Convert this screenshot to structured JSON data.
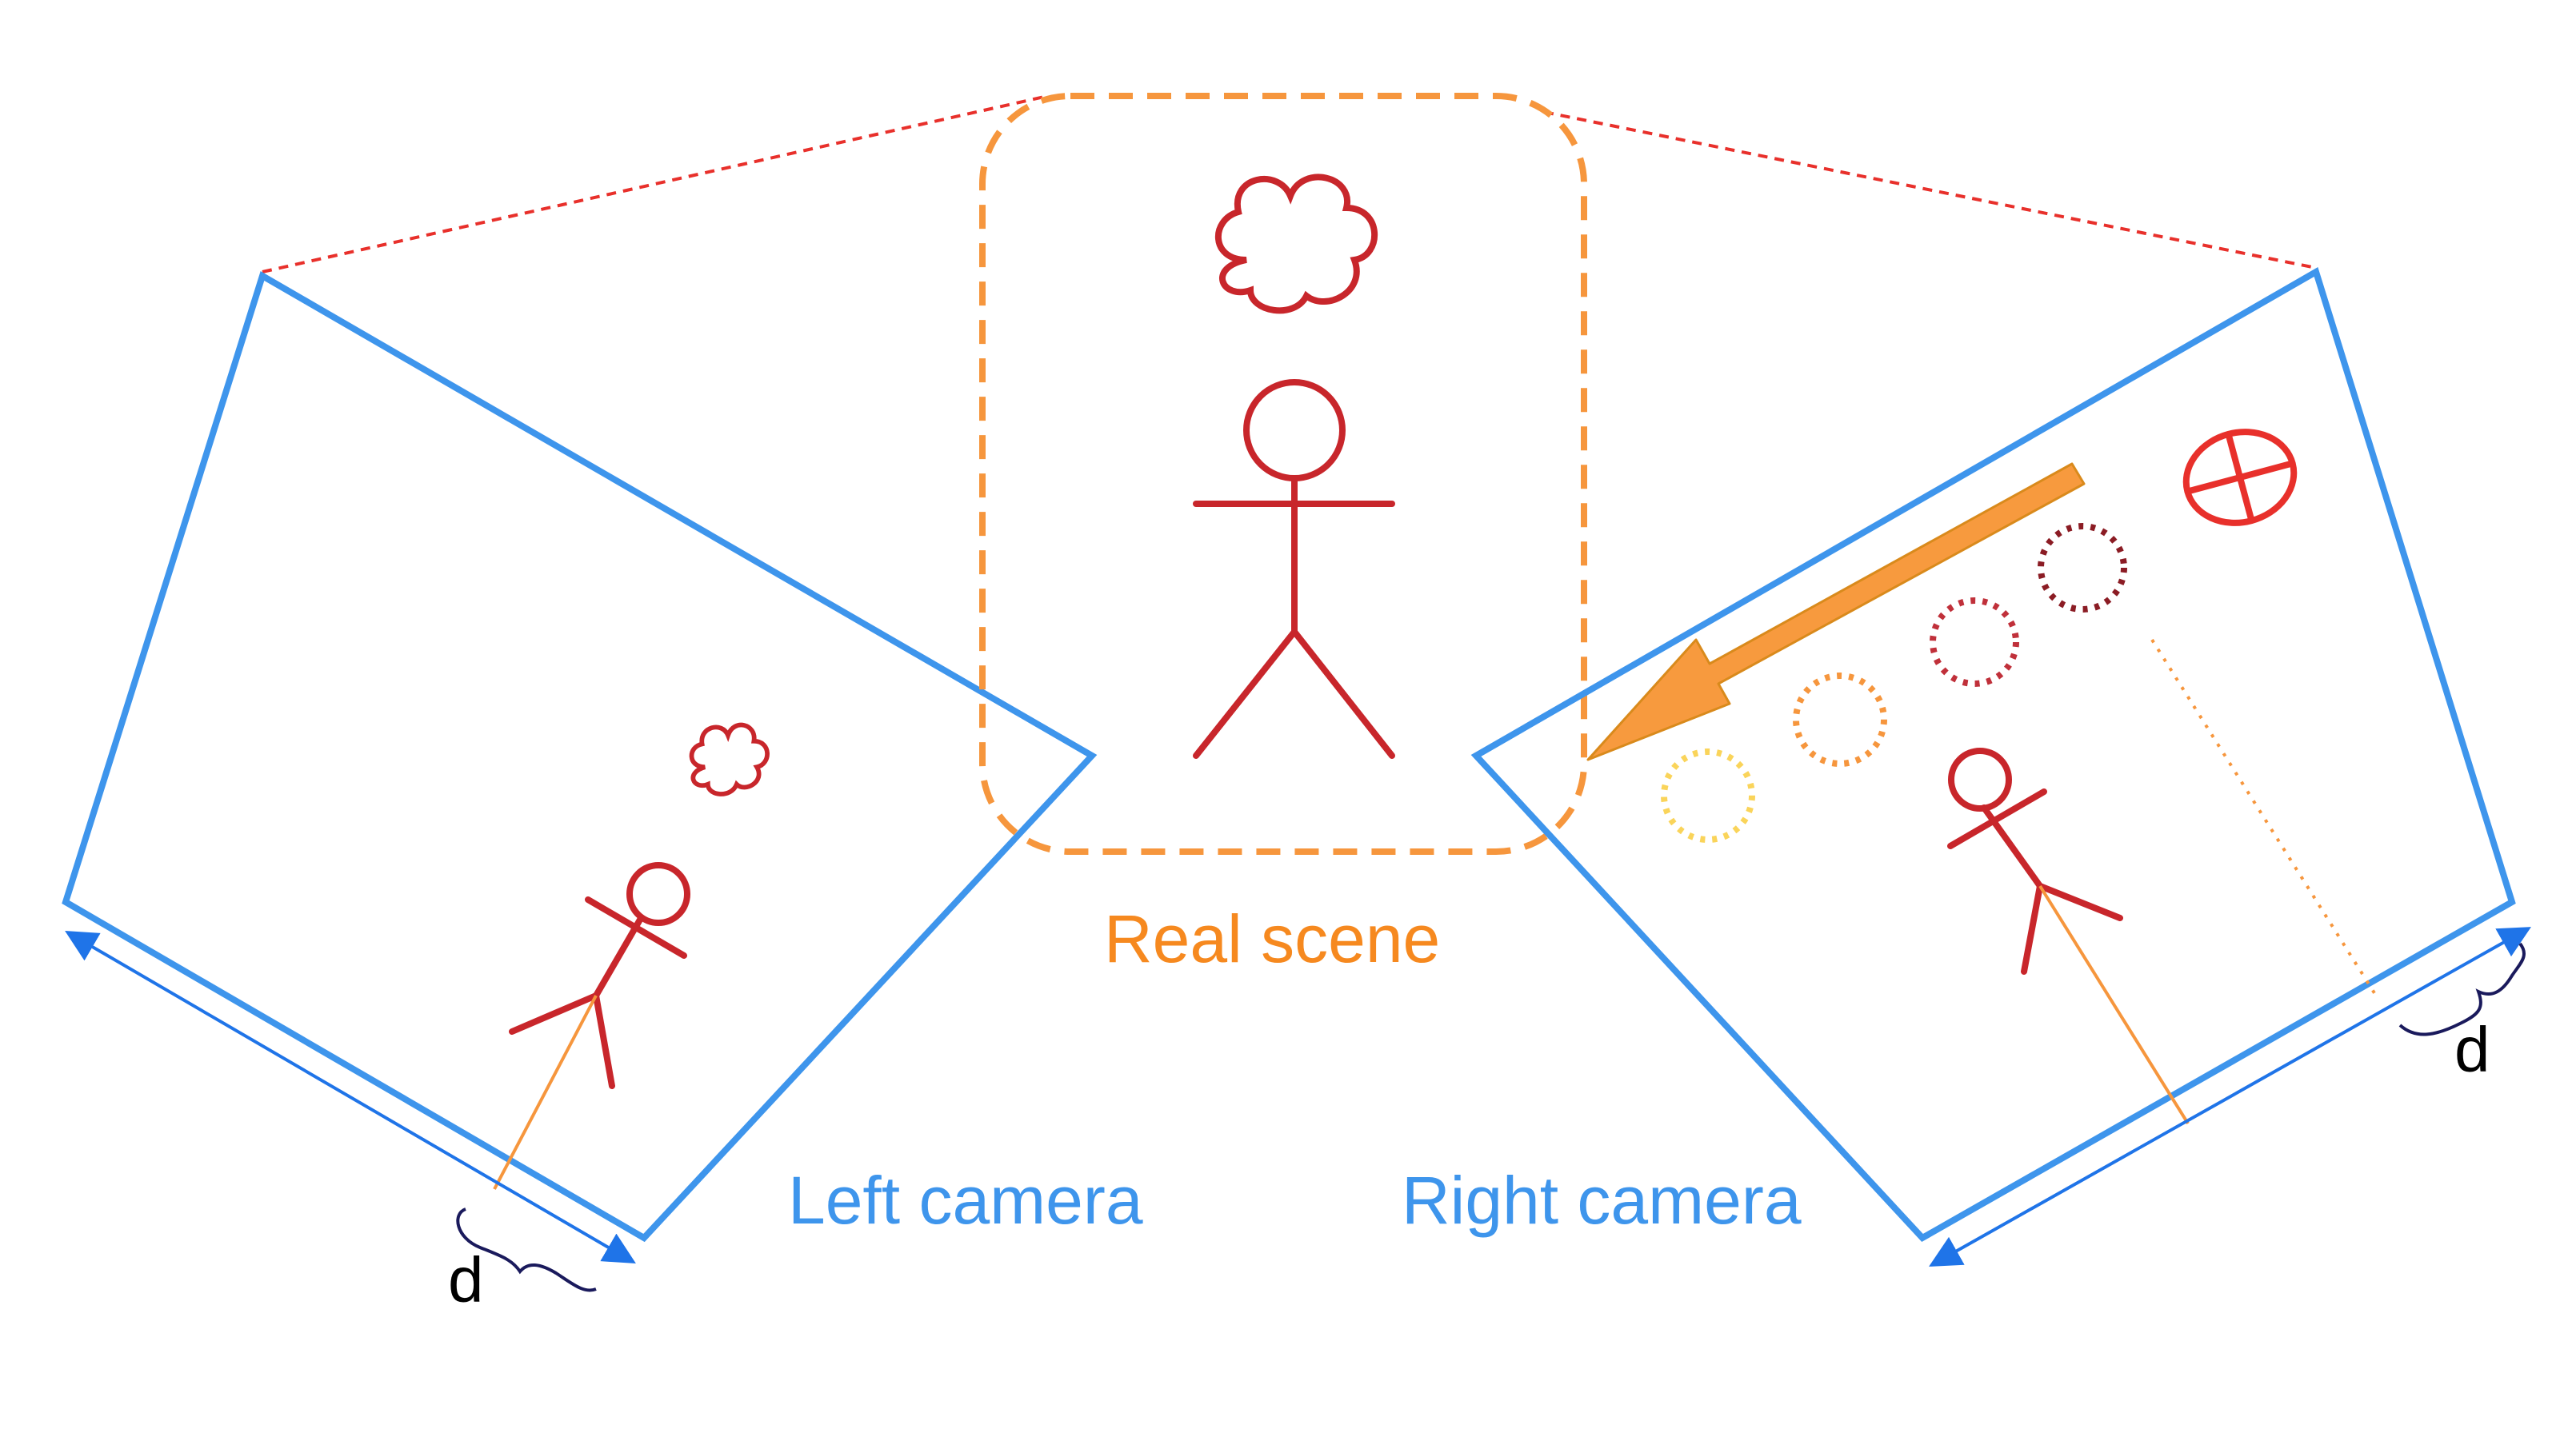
{
  "labels": {
    "real_scene": "Real scene",
    "left_camera": "Left camera",
    "right_camera": "Right camera",
    "left_distance": "d",
    "right_distance": "d"
  },
  "colors": {
    "camera_frame": "#3e95ec",
    "dimension_arrow": "#1f74e8",
    "scene_box": "#f6963d",
    "figure": "#c8262b",
    "view_lines": "#e8302b",
    "motion_arrow": "#f79a3e",
    "brace": "#1a1a5c",
    "text_scene": "#f6891f",
    "text_camera": "#3e95ec"
  },
  "icons": [
    "stick-figure",
    "cloud",
    "target-crosshair",
    "dotted-circle",
    "motion-arrow",
    "curly-brace"
  ]
}
